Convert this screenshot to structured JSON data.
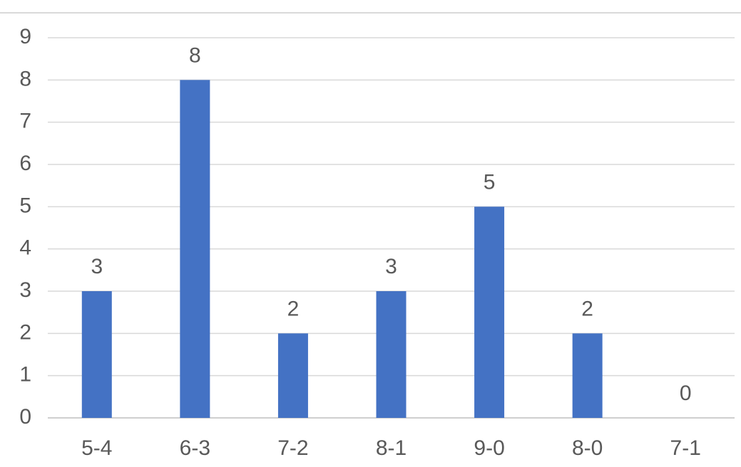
{
  "chart_data": {
    "type": "bar",
    "categories": [
      "5-4",
      "6-3",
      "7-2",
      "8-1",
      "9-0",
      "8-0",
      "7-1"
    ],
    "values": [
      3,
      8,
      2,
      3,
      5,
      2,
      0
    ],
    "color": "#4472c4",
    "ylim": [
      0,
      9
    ],
    "yticks": [
      0,
      1,
      2,
      3,
      4,
      5,
      6,
      7,
      8,
      9
    ],
    "grid": true,
    "data_labels": true
  }
}
